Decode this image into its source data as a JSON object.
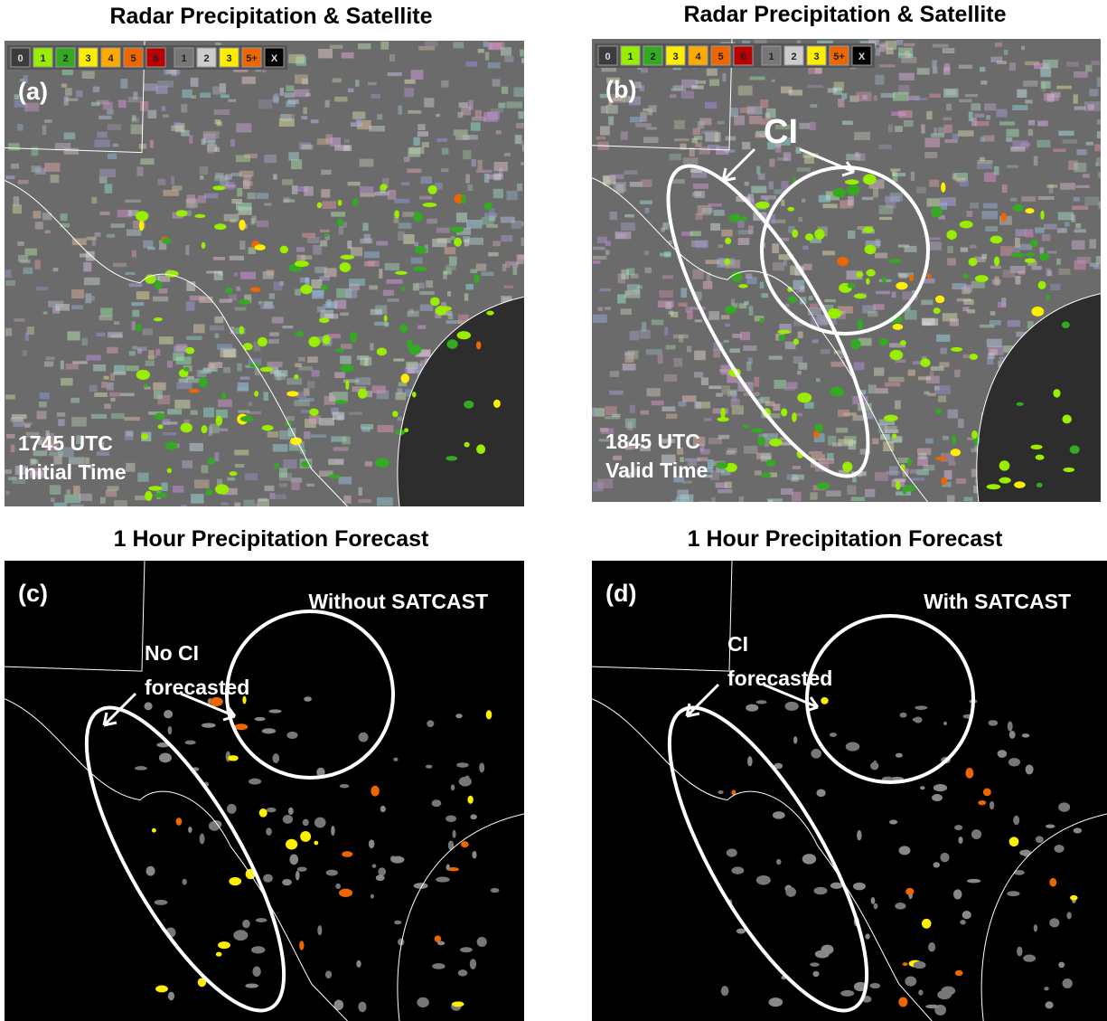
{
  "panels": [
    {
      "title": "Radar Precipitation & Satellite",
      "label": "(a)",
      "time": "1745 UTC",
      "time_note": "Initial Time"
    },
    {
      "title": "Radar Precipitation & Satellite",
      "label": "(b)",
      "time": "1845 UTC",
      "time_note": "Valid Time",
      "annotation": "CI"
    },
    {
      "title": "1 Hour Precipitation Forecast",
      "label": "(c)",
      "corner": "Without SATCAST",
      "annotation": "No CI",
      "annotation_note": "forecasted"
    },
    {
      "title": "1 Hour Precipitation Forecast",
      "label": "(d)",
      "corner": "With SATCAST",
      "annotation": "CI",
      "annotation_note": "forecasted"
    }
  ],
  "legend": [
    {
      "label": "0",
      "color": "#3c3c3c"
    },
    {
      "label": "1",
      "color": "#99ee00"
    },
    {
      "label": "2",
      "color": "#33aa22"
    },
    {
      "label": "3",
      "color": "#ffee00"
    },
    {
      "label": "4",
      "color": "#ffaa00"
    },
    {
      "label": "5",
      "color": "#ee6600"
    },
    {
      "label": "6",
      "color": "#bb0000"
    },
    {
      "label": "1",
      "color": "#777777"
    },
    {
      "label": "2",
      "color": "#cccccc"
    },
    {
      "label": "3",
      "color": "#ffee00"
    },
    {
      "label": "5+",
      "color": "#ee6600"
    },
    {
      "label": "X",
      "color": "#000000"
    }
  ]
}
